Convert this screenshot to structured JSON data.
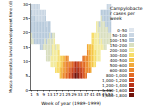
{
  "chart_data": {
    "type": "heatmap",
    "x_label": "Week of year (1989–1999)",
    "y_label": "Musca domestica larval development time (d)",
    "legend_title": "Campylobacter cases per week",
    "legend": "right",
    "grid": false,
    "xlim": [
      0,
      54
    ],
    "xticks": [
      1,
      5,
      9,
      13,
      17,
      21,
      25,
      29,
      33,
      37,
      41,
      45,
      49,
      53
    ],
    "ylim": [
      0,
      30
    ],
    "yticks": [
      0,
      5,
      10,
      15,
      20,
      25,
      30
    ],
    "x_bin": 1,
    "y_bin": 2,
    "cells": [
      [
        1,
        17,
        163
      ],
      [
        1,
        19,
        153
      ],
      [
        1,
        21,
        143
      ],
      [
        1,
        23,
        133
      ],
      [
        1,
        25,
        123
      ],
      [
        1,
        27,
        103
      ],
      [
        1,
        29,
        83
      ],
      [
        2,
        17,
        153
      ],
      [
        2,
        19,
        143
      ],
      [
        2,
        21,
        133
      ],
      [
        2,
        23,
        123
      ],
      [
        2,
        25,
        113
      ],
      [
        2,
        27,
        93
      ],
      [
        2,
        29,
        73
      ],
      [
        3,
        17,
        143
      ],
      [
        3,
        19,
        133
      ],
      [
        3,
        21,
        123
      ],
      [
        3,
        23,
        113
      ],
      [
        3,
        25,
        103
      ],
      [
        3,
        27,
        83
      ],
      [
        3,
        29,
        63
      ],
      [
        4,
        17,
        138
      ],
      [
        4,
        19,
        128
      ],
      [
        4,
        21,
        118
      ],
      [
        4,
        23,
        108
      ],
      [
        4,
        25,
        98
      ],
      [
        4,
        27,
        78
      ],
      [
        4,
        29,
        58
      ],
      [
        5,
        17,
        133
      ],
      [
        5,
        19,
        123
      ],
      [
        5,
        21,
        113
      ],
      [
        5,
        23,
        103
      ],
      [
        5,
        25,
        93
      ],
      [
        5,
        27,
        73
      ],
      [
        5,
        29,
        53
      ],
      [
        6,
        17,
        138
      ],
      [
        6,
        19,
        128
      ],
      [
        6,
        21,
        118
      ],
      [
        6,
        23,
        108
      ],
      [
        6,
        25,
        98
      ],
      [
        6,
        27,
        78
      ],
      [
        6,
        29,
        58
      ],
      [
        7,
        15,
        143
      ],
      [
        7,
        17,
        133
      ],
      [
        7,
        19,
        123
      ],
      [
        7,
        21,
        113
      ],
      [
        7,
        23,
        103
      ],
      [
        7,
        25,
        83
      ],
      [
        7,
        27,
        63
      ],
      [
        8,
        15,
        148
      ],
      [
        8,
        17,
        138
      ],
      [
        8,
        19,
        128
      ],
      [
        8,
        21,
        118
      ],
      [
        8,
        23,
        108
      ],
      [
        8,
        25,
        88
      ],
      [
        8,
        27,
        68
      ],
      [
        9,
        15,
        153
      ],
      [
        9,
        17,
        143
      ],
      [
        9,
        19,
        133
      ],
      [
        9,
        21,
        123
      ],
      [
        9,
        23,
        113
      ],
      [
        9,
        25,
        93
      ],
      [
        9,
        27,
        73
      ],
      [
        10,
        15,
        163
      ],
      [
        10,
        17,
        153
      ],
      [
        10,
        19,
        143
      ],
      [
        10,
        21,
        133
      ],
      [
        10,
        23,
        123
      ],
      [
        10,
        25,
        103
      ],
      [
        10,
        27,
        83
      ],
      [
        11,
        11,
        173
      ],
      [
        11,
        13,
        163
      ],
      [
        11,
        15,
        153
      ],
      [
        11,
        17,
        143
      ],
      [
        11,
        19,
        133
      ],
      [
        11,
        21,
        113
      ],
      [
        11,
        23,
        93
      ],
      [
        12,
        11,
        183
      ],
      [
        12,
        13,
        173
      ],
      [
        12,
        15,
        163
      ],
      [
        12,
        17,
        153
      ],
      [
        12,
        19,
        143
      ],
      [
        12,
        21,
        123
      ],
      [
        12,
        23,
        103
      ],
      [
        13,
        11,
        198
      ],
      [
        13,
        13,
        188
      ],
      [
        13,
        15,
        178
      ],
      [
        13,
        17,
        168
      ],
      [
        13,
        19,
        158
      ],
      [
        13,
        21,
        138
      ],
      [
        13,
        23,
        118
      ],
      [
        14,
        9,
        213
      ],
      [
        14,
        11,
        203
      ],
      [
        14,
        13,
        193
      ],
      [
        14,
        15,
        183
      ],
      [
        14,
        17,
        163
      ],
      [
        14,
        19,
        143
      ],
      [
        15,
        9,
        233
      ],
      [
        15,
        11,
        223
      ],
      [
        15,
        13,
        213
      ],
      [
        15,
        15,
        203
      ],
      [
        15,
        17,
        183
      ],
      [
        15,
        19,
        163
      ],
      [
        16,
        9,
        253
      ],
      [
        16,
        11,
        243
      ],
      [
        16,
        13,
        233
      ],
      [
        16,
        15,
        223
      ],
      [
        16,
        17,
        203
      ],
      [
        16,
        19,
        183
      ],
      [
        17,
        7,
        303
      ],
      [
        17,
        9,
        273
      ],
      [
        17,
        11,
        253
      ],
      [
        17,
        13,
        223
      ],
      [
        17,
        15,
        193
      ],
      [
        18,
        7,
        343
      ],
      [
        18,
        9,
        313
      ],
      [
        18,
        11,
        293
      ],
      [
        18,
        13,
        263
      ],
      [
        18,
        15,
        233
      ],
      [
        19,
        7,
        393
      ],
      [
        19,
        9,
        363
      ],
      [
        19,
        11,
        343
      ],
      [
        19,
        13,
        313
      ],
      [
        19,
        15,
        283
      ],
      [
        20,
        5,
        483
      ],
      [
        20,
        7,
        433
      ],
      [
        20,
        9,
        383
      ],
      [
        20,
        11,
        333
      ],
      [
        21,
        5,
        553
      ],
      [
        21,
        7,
        503
      ],
      [
        21,
        9,
        453
      ],
      [
        21,
        11,
        403
      ],
      [
        22,
        5,
        633
      ],
      [
        22,
        7,
        583
      ],
      [
        22,
        9,
        533
      ],
      [
        22,
        11,
        483
      ],
      [
        23,
        5,
        713
      ],
      [
        23,
        7,
        663
      ],
      [
        23,
        9,
        613
      ],
      [
        23,
        11,
        563
      ],
      [
        24,
        5,
        803
      ],
      [
        24,
        7,
        753
      ],
      [
        24,
        9,
        703
      ],
      [
        24,
        11,
        653
      ],
      [
        25,
        5,
        903
      ],
      [
        25,
        7,
        853
      ],
      [
        25,
        9,
        803
      ],
      [
        25,
        11,
        753
      ],
      [
        26,
        5,
        1043
      ],
      [
        26,
        7,
        943
      ],
      [
        26,
        9,
        793
      ],
      [
        27,
        5,
        1143
      ],
      [
        27,
        7,
        1043
      ],
      [
        27,
        9,
        893
      ],
      [
        28,
        5,
        1243
      ],
      [
        28,
        7,
        1143
      ],
      [
        28,
        9,
        993
      ],
      [
        29,
        5,
        1483
      ],
      [
        29,
        7,
        1253
      ],
      [
        29,
        9,
        1103
      ],
      [
        30,
        5,
        1653
      ],
      [
        30,
        7,
        1353
      ],
      [
        30,
        9,
        1203
      ],
      [
        31,
        5,
        1753
      ],
      [
        31,
        7,
        1403
      ],
      [
        31,
        9,
        1253
      ],
      [
        32,
        5,
        1583
      ],
      [
        32,
        7,
        1343
      ],
      [
        32,
        9,
        1193
      ],
      [
        33,
        5,
        1343
      ],
      [
        33,
        7,
        1243
      ],
      [
        33,
        9,
        1093
      ],
      [
        34,
        5,
        1233
      ],
      [
        34,
        7,
        1133
      ],
      [
        34,
        9,
        983
      ],
      [
        35,
        5,
        1063
      ],
      [
        35,
        7,
        1013
      ],
      [
        35,
        9,
        963
      ],
      [
        35,
        11,
        913
      ],
      [
        36,
        5,
        943
      ],
      [
        36,
        7,
        893
      ],
      [
        36,
        9,
        843
      ],
      [
        36,
        11,
        793
      ],
      [
        37,
        5,
        823
      ],
      [
        37,
        7,
        773
      ],
      [
        37,
        9,
        723
      ],
      [
        37,
        11,
        673
      ],
      [
        38,
        7,
        693
      ],
      [
        38,
        9,
        663
      ],
      [
        38,
        11,
        643
      ],
      [
        38,
        13,
        613
      ],
      [
        38,
        15,
        583
      ],
      [
        39,
        7,
        603
      ],
      [
        39,
        9,
        573
      ],
      [
        39,
        11,
        553
      ],
      [
        39,
        13,
        523
      ],
      [
        39,
        15,
        493
      ],
      [
        40,
        7,
        523
      ],
      [
        40,
        9,
        493
      ],
      [
        40,
        11,
        473
      ],
      [
        40,
        13,
        443
      ],
      [
        40,
        15,
        413
      ],
      [
        41,
        9,
        433
      ],
      [
        41,
        11,
        423
      ],
      [
        41,
        13,
        413
      ],
      [
        41,
        15,
        403
      ],
      [
        41,
        17,
        383
      ],
      [
        41,
        19,
        363
      ],
      [
        42,
        9,
        373
      ],
      [
        42,
        11,
        363
      ],
      [
        42,
        13,
        353
      ],
      [
        42,
        15,
        343
      ],
      [
        42,
        17,
        323
      ],
      [
        42,
        19,
        303
      ],
      [
        43,
        9,
        323
      ],
      [
        43,
        11,
        313
      ],
      [
        43,
        13,
        303
      ],
      [
        43,
        15,
        293
      ],
      [
        43,
        17,
        273
      ],
      [
        43,
        19,
        253
      ],
      [
        44,
        11,
        283
      ],
      [
        44,
        13,
        273
      ],
      [
        44,
        15,
        263
      ],
      [
        44,
        17,
        253
      ],
      [
        44,
        19,
        243
      ],
      [
        44,
        21,
        223
      ],
      [
        44,
        23,
        203
      ],
      [
        45,
        11,
        253
      ],
      [
        45,
        13,
        243
      ],
      [
        45,
        15,
        233
      ],
      [
        45,
        17,
        223
      ],
      [
        45,
        19,
        213
      ],
      [
        45,
        21,
        193
      ],
      [
        45,
        23,
        173
      ],
      [
        46,
        11,
        228
      ],
      [
        46,
        13,
        218
      ],
      [
        46,
        15,
        208
      ],
      [
        46,
        17,
        198
      ],
      [
        46,
        19,
        188
      ],
      [
        46,
        21,
        168
      ],
      [
        46,
        23,
        148
      ],
      [
        47,
        15,
        213
      ],
      [
        47,
        17,
        203
      ],
      [
        47,
        19,
        193
      ],
      [
        47,
        21,
        183
      ],
      [
        47,
        23,
        173
      ],
      [
        47,
        25,
        153
      ],
      [
        47,
        27,
        133
      ],
      [
        48,
        15,
        203
      ],
      [
        48,
        17,
        193
      ],
      [
        48,
        19,
        183
      ],
      [
        48,
        21,
        173
      ],
      [
        48,
        23,
        163
      ],
      [
        48,
        25,
        143
      ],
      [
        48,
        27,
        123
      ],
      [
        49,
        15,
        193
      ],
      [
        49,
        17,
        183
      ],
      [
        49,
        19,
        173
      ],
      [
        49,
        21,
        163
      ],
      [
        49,
        23,
        153
      ],
      [
        49,
        25,
        133
      ],
      [
        49,
        27,
        113
      ],
      [
        50,
        15,
        183
      ],
      [
        50,
        17,
        173
      ],
      [
        50,
        19,
        163
      ],
      [
        50,
        21,
        153
      ],
      [
        50,
        23,
        143
      ],
      [
        50,
        25,
        123
      ],
      [
        50,
        27,
        103
      ],
      [
        51,
        17,
        173
      ],
      [
        51,
        19,
        163
      ],
      [
        51,
        21,
        153
      ],
      [
        51,
        23,
        143
      ],
      [
        51,
        25,
        133
      ],
      [
        51,
        27,
        113
      ],
      [
        51,
        29,
        93
      ],
      [
        52,
        17,
        168
      ],
      [
        52,
        19,
        158
      ],
      [
        52,
        21,
        148
      ],
      [
        52,
        23,
        138
      ],
      [
        52,
        25,
        128
      ],
      [
        52,
        27,
        108
      ],
      [
        52,
        29,
        88
      ],
      [
        53,
        17,
        163
      ],
      [
        53,
        19,
        153
      ],
      [
        53,
        21,
        143
      ],
      [
        53,
        23,
        133
      ],
      [
        53,
        25,
        123
      ],
      [
        53,
        27,
        103
      ],
      [
        53,
        29,
        83
      ]
    ],
    "color_bins": [
      {
        "min": 0,
        "max": 50,
        "label": "0–50",
        "color": "#dfe6ee"
      },
      {
        "min": 50,
        "max": 100,
        "label": "50–100",
        "color": "#c9d6e3"
      },
      {
        "min": 100,
        "max": 150,
        "label": "100–150",
        "color": "#b7cadb"
      },
      {
        "min": 150,
        "max": 200,
        "label": "150–200",
        "color": "#d9dfc0"
      },
      {
        "min": 200,
        "max": 300,
        "label": "200–300",
        "color": "#f3eb9e"
      },
      {
        "min": 300,
        "max": 400,
        "label": "300–400",
        "color": "#f7dd6a"
      },
      {
        "min": 400,
        "max": 500,
        "label": "400–500",
        "color": "#f5c44a"
      },
      {
        "min": 500,
        "max": 600,
        "label": "500–600",
        "color": "#f1a83a"
      },
      {
        "min": 600,
        "max": 800,
        "label": "600–800",
        "color": "#ec8a2e"
      },
      {
        "min": 800,
        "max": 1000,
        "label": "800–1,000",
        "color": "#e26a24"
      },
      {
        "min": 1000,
        "max": 1200,
        "label": "1,000–1,200",
        "color": "#d24a1c"
      },
      {
        "min": 1200,
        "max": 1400,
        "label": "1,200–1,400",
        "color": "#b83216"
      },
      {
        "min": 1400,
        "max": 1600,
        "label": "1,400–1,600",
        "color": "#962010"
      },
      {
        "min": 1600,
        "max": 1800,
        "label": "1,600–1,800",
        "color": "#6e120a"
      }
    ]
  }
}
